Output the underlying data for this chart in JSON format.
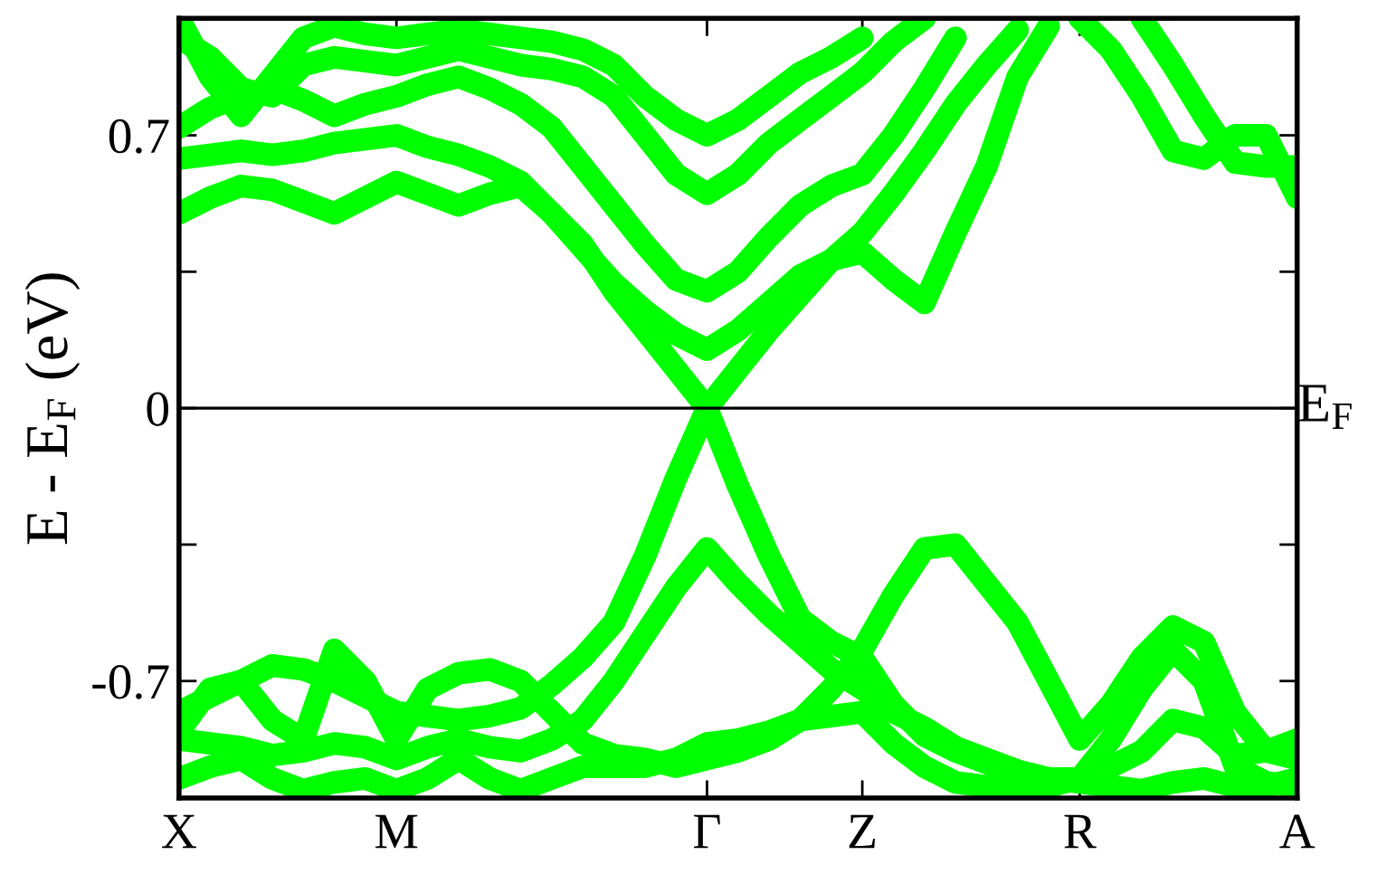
{
  "chart_data": {
    "type": "line",
    "ylabel": "E - E$_{F}$ (eV)",
    "categories": [
      "X",
      null,
      null,
      null,
      null,
      null,
      null,
      "M",
      null,
      null,
      null,
      null,
      null,
      null,
      null,
      null,
      null,
      "Γ",
      null,
      null,
      null,
      null,
      "Z",
      null,
      null,
      null,
      null,
      null,
      null,
      "R",
      null,
      null,
      null,
      null,
      null,
      null,
      "A"
    ],
    "series": [
      {
        "color": "#00ff00",
        "values": [
          -0.78,
          -0.74,
          -0.7,
          -0.66,
          -0.67,
          -0.7,
          -0.74,
          -0.78,
          -0.79,
          -0.8,
          -0.79,
          -0.77,
          -0.71,
          -0.64,
          -0.55,
          -0.38,
          -0.18,
          0,
          -0.2,
          -0.38,
          -0.54,
          -0.6,
          -0.64,
          -0.76,
          -0.84,
          -0.88,
          -0.91,
          -0.95,
          -0.95,
          -0.95,
          -0.92,
          -0.88,
          -0.8,
          -0.82,
          -0.89,
          -0.88,
          -0.85
        ]
      },
      {
        "color": "#00ff00",
        "values": [
          -0.85,
          -0.86,
          -0.87,
          -0.89,
          -0.88,
          -0.86,
          -0.87,
          -0.9,
          -0.87,
          -0.85,
          -0.87,
          -0.88,
          -0.85,
          -0.8,
          -0.7,
          -0.58,
          -0.46,
          -0.36,
          -0.45,
          -0.53,
          -0.6,
          -0.67,
          -0.72,
          -0.78,
          -0.82,
          -0.87,
          -0.9,
          -0.93,
          -0.95,
          -0.96,
          -0.97,
          -0.98,
          -0.96,
          -0.95,
          -0.97,
          -0.97,
          -0.95
        ]
      },
      {
        "color": "#00ff00",
        "values": [
          -0.83,
          -0.72,
          -0.7,
          -0.8,
          -0.85,
          -0.62,
          -0.7,
          -0.85,
          -0.72,
          -0.68,
          -0.67,
          -0.7,
          -0.78,
          -0.86,
          -0.89,
          -0.9,
          -0.92,
          -0.9,
          -0.88,
          -0.85,
          -0.8,
          -0.72,
          -0.62,
          -0.48,
          -0.36,
          -0.35,
          -0.45,
          -0.55,
          -0.7,
          -0.85,
          -0.76,
          -0.64,
          -0.56,
          -0.6,
          -0.78,
          -0.88,
          -0.9
        ]
      },
      {
        "color": "#00ff00",
        "values": [
          -0.95,
          -0.92,
          -0.9,
          -0.95,
          -0.98,
          -0.96,
          -0.95,
          -0.98,
          -0.95,
          -0.9,
          -0.95,
          -0.98,
          -0.95,
          -0.92,
          -0.92,
          -0.92,
          -0.9,
          -0.86,
          -0.85,
          -0.83,
          -0.8,
          -0.79,
          -0.78,
          -0.86,
          -0.92,
          -0.96,
          -0.97,
          -0.98,
          -0.97,
          -0.95,
          -0.85,
          -0.72,
          -0.62,
          -0.7,
          -0.92,
          -0.96,
          -0.97
        ]
      },
      {
        "color": "#00ff00",
        "values": [
          0.5,
          0.54,
          0.57,
          0.56,
          0.53,
          0.5,
          0.54,
          0.58,
          0.55,
          0.52,
          0.55,
          0.57,
          0.5,
          0.42,
          0.3,
          0.2,
          0.1,
          0,
          0.1,
          0.2,
          0.29,
          0.38,
          0.45,
          0.55,
          0.66,
          0.78,
          0.88,
          0.97,
          null,
          null,
          null,
          null,
          null,
          null,
          null,
          null,
          null
        ]
      },
      {
        "color": "#00ff00",
        "values": [
          0.64,
          0.65,
          0.66,
          0.65,
          0.66,
          0.68,
          0.69,
          0.7,
          0.67,
          0.65,
          0.62,
          0.58,
          0.5,
          0.41,
          0.32,
          0.25,
          0.19,
          0.15,
          0.2,
          0.27,
          0.34,
          0.38,
          0.4,
          0.33,
          0.27,
          0.45,
          0.62,
          0.85,
          0.98,
          null,
          null,
          null,
          null,
          null,
          null,
          null,
          null
        ]
      },
      {
        "color": "#00ff00",
        "values": [
          0.72,
          0.77,
          0.8,
          0.82,
          0.79,
          0.75,
          0.78,
          0.8,
          0.83,
          0.85,
          0.82,
          0.78,
          0.72,
          0.62,
          0.52,
          0.42,
          0.33,
          0.3,
          0.35,
          0.44,
          0.52,
          0.57,
          0.6,
          0.7,
          0.82,
          0.95,
          null,
          null,
          null,
          null,
          null,
          null,
          null,
          null,
          null,
          null,
          null
        ]
      },
      {
        "color": "#00ff00",
        "values": [
          0.95,
          0.9,
          0.82,
          0.8,
          0.88,
          0.9,
          0.89,
          0.88,
          0.9,
          0.92,
          0.9,
          0.88,
          0.87,
          0.85,
          0.8,
          0.7,
          0.6,
          0.55,
          0.6,
          0.68,
          0.74,
          0.8,
          0.86,
          0.94,
          1.0,
          null,
          null,
          null,
          null,
          null,
          null,
          null,
          null,
          null,
          null,
          null,
          null
        ]
      },
      {
        "color": "#00ff00",
        "values": [
          1.0,
          0.85,
          0.75,
          0.85,
          0.95,
          0.98,
          0.96,
          0.95,
          0.96,
          0.97,
          0.96,
          0.95,
          0.94,
          0.92,
          0.88,
          0.8,
          0.74,
          0.7,
          0.74,
          0.8,
          0.86,
          0.9,
          0.95,
          null,
          null,
          null,
          null,
          null,
          null,
          null,
          null,
          null,
          null,
          null,
          null,
          null,
          null
        ]
      },
      {
        "color": "#00ff00",
        "values": [
          null,
          null,
          null,
          null,
          null,
          null,
          null,
          null,
          null,
          null,
          null,
          null,
          null,
          null,
          null,
          null,
          null,
          null,
          null,
          null,
          null,
          null,
          null,
          null,
          null,
          null,
          null,
          null,
          null,
          1.0,
          0.92,
          0.8,
          0.66,
          0.64,
          0.7,
          0.7,
          0.54
        ]
      },
      {
        "color": "#00ff00",
        "values": [
          null,
          null,
          null,
          null,
          null,
          null,
          null,
          null,
          null,
          null,
          null,
          null,
          null,
          null,
          null,
          null,
          null,
          null,
          null,
          null,
          null,
          null,
          null,
          null,
          null,
          null,
          null,
          null,
          null,
          null,
          null,
          1.0,
          0.88,
          0.75,
          0.63,
          0.62,
          0.62
        ]
      }
    ],
    "ylim": [
      -1,
      1
    ],
    "yticks": [
      -0.7,
      {
        "value": -0.35,
        "label": null
      },
      0,
      {
        "value": 0.35,
        "label": null
      },
      0.7
    ],
    "ref_lines": [
      {
        "axis": "y",
        "value": 0,
        "label": "E$_{F}$",
        "color": "#000000"
      }
    ],
    "grid": false
  }
}
